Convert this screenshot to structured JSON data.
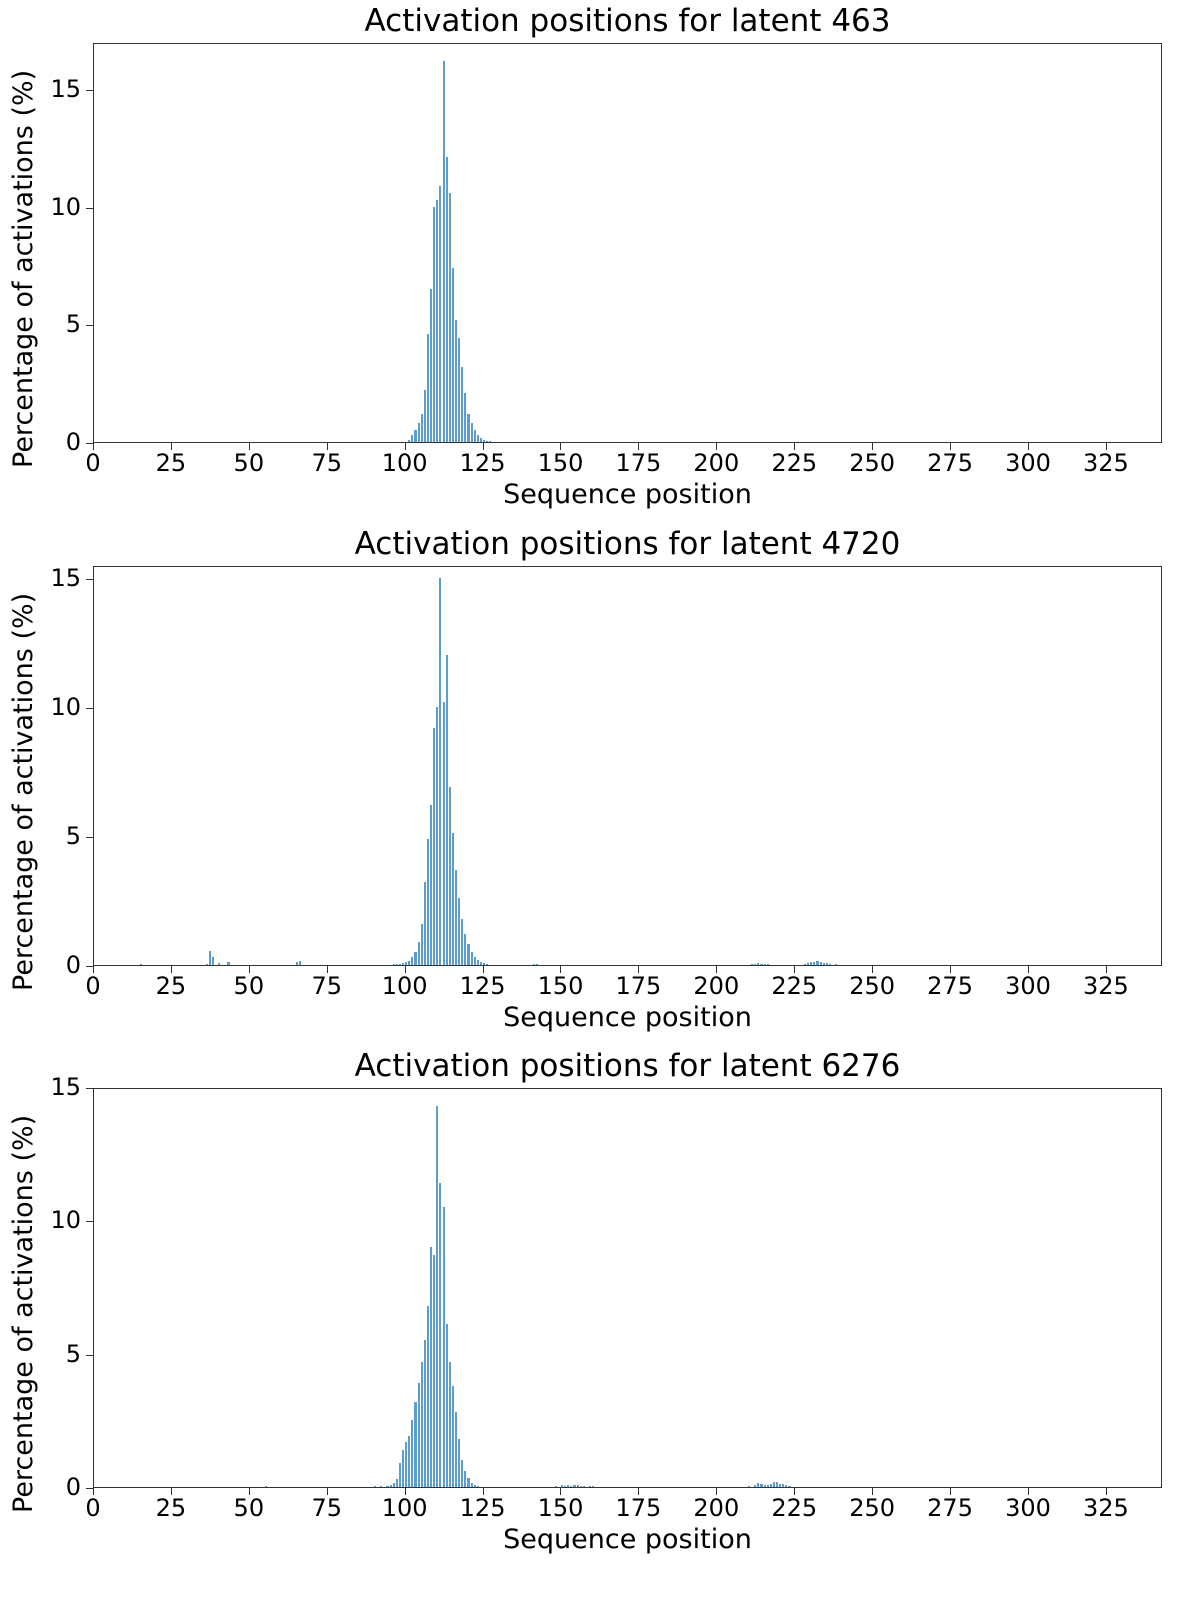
{
  "chart_data": [
    {
      "type": "bar",
      "title": "Activation positions for latent 463",
      "xlabel": "Sequence position",
      "ylabel": "Percentage of activations (%)",
      "xlim": [
        0,
        343
      ],
      "ylim": [
        0,
        17
      ],
      "xticks": [
        0,
        25,
        50,
        75,
        100,
        125,
        150,
        175,
        200,
        225,
        250,
        275,
        300,
        325
      ],
      "yticks": [
        0,
        5,
        10,
        15
      ],
      "grid": false,
      "color": "#5d9ecf",
      "x": [
        101,
        102,
        103,
        104,
        105,
        106,
        107,
        108,
        109,
        110,
        111,
        112,
        113,
        114,
        115,
        116,
        117,
        118,
        119,
        120,
        121,
        122,
        123,
        124,
        125,
        126,
        127
      ],
      "values": [
        0.1,
        0.3,
        0.5,
        0.8,
        1.2,
        2.2,
        4.6,
        6.5,
        10.0,
        10.3,
        10.9,
        16.2,
        12.1,
        10.6,
        7.4,
        5.2,
        4.4,
        3.2,
        2.1,
        1.2,
        0.8,
        0.5,
        0.3,
        0.15,
        0.1,
        0.05,
        0.03
      ]
    },
    {
      "type": "bar",
      "title": "Activation positions for latent 4720",
      "xlabel": "Sequence position",
      "ylabel": "Percentage of activations (%)",
      "xlim": [
        0,
        343
      ],
      "ylim": [
        0,
        15.5
      ],
      "xticks": [
        0,
        25,
        50,
        75,
        100,
        125,
        150,
        175,
        200,
        225,
        250,
        275,
        300,
        325
      ],
      "yticks": [
        0,
        5,
        10,
        15
      ],
      "grid": false,
      "color": "#5d9ecf",
      "x": [
        15,
        36,
        37,
        38,
        40,
        43,
        65,
        66,
        96,
        97,
        98,
        99,
        100,
        101,
        102,
        103,
        104,
        105,
        106,
        107,
        108,
        109,
        110,
        111,
        112,
        113,
        114,
        115,
        116,
        117,
        118,
        119,
        120,
        121,
        122,
        123,
        124,
        125,
        126,
        141,
        142,
        211,
        212,
        213,
        214,
        215,
        216,
        228,
        229,
        230,
        231,
        232,
        233,
        234,
        235,
        236,
        238
      ],
      "values": [
        0.05,
        0.05,
        0.55,
        0.3,
        0.08,
        0.1,
        0.1,
        0.15,
        0.03,
        0.05,
        0.05,
        0.08,
        0.1,
        0.15,
        0.3,
        0.5,
        0.9,
        1.6,
        3.2,
        4.9,
        6.2,
        9.2,
        10.0,
        15.0,
        10.2,
        12.0,
        6.9,
        5.1,
        3.7,
        2.6,
        1.8,
        1.2,
        0.8,
        0.5,
        0.3,
        0.2,
        0.1,
        0.07,
        0.03,
        0.04,
        0.03,
        0.05,
        0.05,
        0.06,
        0.05,
        0.05,
        0.04,
        0.04,
        0.06,
        0.1,
        0.13,
        0.15,
        0.12,
        0.08,
        0.06,
        0.05,
        0.04
      ]
    },
    {
      "type": "bar",
      "title": "Activation positions for latent 6276",
      "xlabel": "Sequence position",
      "ylabel": "Percentage of activations (%)",
      "xlim": [
        0,
        343
      ],
      "ylim": [
        0,
        15
      ],
      "xticks": [
        0,
        25,
        50,
        75,
        100,
        125,
        150,
        175,
        200,
        225,
        250,
        275,
        300,
        325
      ],
      "yticks": [
        0,
        5,
        10,
        15
      ],
      "grid": false,
      "color": "#5d9ecf",
      "x": [
        55,
        90,
        92,
        94,
        95,
        96,
        97,
        98,
        99,
        100,
        101,
        102,
        103,
        104,
        105,
        106,
        107,
        108,
        109,
        110,
        111,
        112,
        113,
        114,
        115,
        116,
        117,
        118,
        119,
        120,
        121,
        122,
        123,
        148,
        150,
        151,
        152,
        153,
        154,
        155,
        156,
        157,
        159,
        160,
        210,
        212,
        213,
        214,
        215,
        216,
        217,
        218,
        219,
        220,
        221,
        222,
        223
      ],
      "values": [
        0.02,
        0.03,
        0.04,
        0.05,
        0.08,
        0.15,
        0.3,
        0.9,
        1.4,
        1.7,
        1.9,
        2.5,
        3.2,
        3.9,
        4.7,
        5.5,
        6.8,
        9.0,
        8.7,
        14.3,
        11.4,
        10.5,
        6.1,
        4.7,
        3.8,
        2.8,
        1.8,
        1.0,
        0.6,
        0.35,
        0.15,
        0.08,
        0.05,
        0.04,
        0.08,
        0.05,
        0.06,
        0.05,
        0.06,
        0.07,
        0.05,
        0.05,
        0.04,
        0.04,
        0.04,
        0.08,
        0.15,
        0.1,
        0.07,
        0.08,
        0.1,
        0.2,
        0.18,
        0.12,
        0.12,
        0.07,
        0.05
      ]
    }
  ]
}
